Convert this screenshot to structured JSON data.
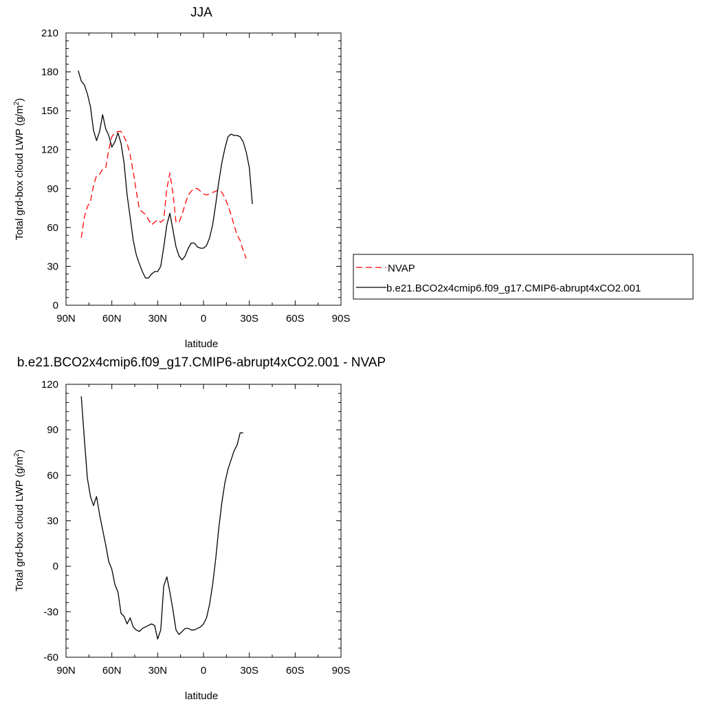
{
  "chart_data": [
    {
      "type": "line",
      "title": "JJA",
      "xlabel": "latitude",
      "ylabel": "Total grd-box cloud LWP (g/m",
      "ylabel_sup": "2",
      "ylabel_tail": ")",
      "xlim": [
        90,
        -90
      ],
      "ylim": [
        0,
        210
      ],
      "x_ticks": [
        {
          "value": 90,
          "label": "90N"
        },
        {
          "value": 60,
          "label": "60N"
        },
        {
          "value": 30,
          "label": "30N"
        },
        {
          "value": 0,
          "label": "0"
        },
        {
          "value": -30,
          "label": "30S"
        },
        {
          "value": -60,
          "label": "60S"
        },
        {
          "value": -90,
          "label": "90S"
        }
      ],
      "y_ticks": [
        0,
        30,
        60,
        90,
        120,
        150,
        180,
        210
      ],
      "legend_position": "outside-right",
      "series": [
        {
          "name": "NVAP",
          "color": "#ff0000",
          "dash": "dashed",
          "points": [
            [
              80,
              52
            ],
            [
              78,
              68
            ],
            [
              76,
              76
            ],
            [
              74,
              80
            ],
            [
              72,
              92
            ],
            [
              70,
              100
            ],
            [
              68,
              101
            ],
            [
              66,
              105
            ],
            [
              64,
              106
            ],
            [
              62,
              120
            ],
            [
              60,
              130
            ],
            [
              58,
              133
            ],
            [
              56,
              134
            ],
            [
              54,
              134
            ],
            [
              52,
              130
            ],
            [
              50,
              125
            ],
            [
              48,
              116
            ],
            [
              46,
              103
            ],
            [
              44,
              88
            ],
            [
              42,
              74
            ],
            [
              40,
              72
            ],
            [
              38,
              70
            ],
            [
              36,
              66
            ],
            [
              34,
              62
            ],
            [
              32,
              64
            ],
            [
              30,
              66
            ],
            [
              28,
              64
            ],
            [
              26,
              66
            ],
            [
              24,
              90
            ],
            [
              22,
              102
            ],
            [
              20,
              86
            ],
            [
              18,
              64
            ],
            [
              16,
              64
            ],
            [
              14,
              70
            ],
            [
              12,
              78
            ],
            [
              10,
              85
            ],
            [
              8,
              88
            ],
            [
              6,
              90
            ],
            [
              4,
              90
            ],
            [
              2,
              88
            ],
            [
              0,
              86
            ],
            [
              -2,
              85
            ],
            [
              -4,
              86
            ],
            [
              -6,
              87
            ],
            [
              -8,
              88
            ],
            [
              -10,
              89
            ],
            [
              -12,
              87
            ],
            [
              -14,
              83
            ],
            [
              -16,
              77
            ],
            [
              -18,
              70
            ],
            [
              -20,
              62
            ],
            [
              -22,
              54
            ],
            [
              -24,
              50
            ],
            [
              -26,
              42
            ],
            [
              -28,
              36
            ]
          ]
        },
        {
          "name": "b.e21.BCO2x4cmip6.f09_g17.CMIP6-abrupt4xCO2.001",
          "color": "#000000",
          "dash": "solid",
          "points": [
            [
              82,
              181
            ],
            [
              80,
              173
            ],
            [
              78,
              170
            ],
            [
              76,
              163
            ],
            [
              74,
              153
            ],
            [
              72,
              135
            ],
            [
              70,
              127
            ],
            [
              68,
              134
            ],
            [
              66,
              147
            ],
            [
              64,
              136
            ],
            [
              62,
              131
            ],
            [
              60,
              122
            ],
            [
              58,
              126
            ],
            [
              56,
              133
            ],
            [
              54,
              125
            ],
            [
              52,
              110
            ],
            [
              50,
              85
            ],
            [
              48,
              68
            ],
            [
              46,
              50
            ],
            [
              44,
              39
            ],
            [
              42,
              32
            ],
            [
              40,
              26
            ],
            [
              38,
              21
            ],
            [
              36,
              21
            ],
            [
              34,
              24
            ],
            [
              32,
              26
            ],
            [
              30,
              26
            ],
            [
              28,
              30
            ],
            [
              26,
              45
            ],
            [
              24,
              62
            ],
            [
              22,
              71
            ],
            [
              20,
              58
            ],
            [
              18,
              45
            ],
            [
              16,
              38
            ],
            [
              14,
              35
            ],
            [
              12,
              38
            ],
            [
              10,
              44
            ],
            [
              8,
              48
            ],
            [
              6,
              48
            ],
            [
              4,
              45
            ],
            [
              2,
              44
            ],
            [
              0,
              44
            ],
            [
              -2,
              46
            ],
            [
              -4,
              52
            ],
            [
              -6,
              62
            ],
            [
              -8,
              78
            ],
            [
              -10,
              95
            ],
            [
              -12,
              110
            ],
            [
              -14,
              121
            ],
            [
              -16,
              130
            ],
            [
              -18,
              132
            ],
            [
              -20,
              131
            ],
            [
              -22,
              131
            ],
            [
              -24,
              130
            ],
            [
              -26,
              126
            ],
            [
              -28,
              118
            ],
            [
              -30,
              106
            ],
            [
              -32,
              78
            ]
          ]
        }
      ]
    },
    {
      "type": "line",
      "title": "b.e21.BCO2x4cmip6.f09_g17.CMIP6-abrupt4xCO2.001 - NVAP",
      "xlabel": "latitude",
      "ylabel": "Total grd-box cloud LWP (g/m",
      "ylabel_sup": "2",
      "ylabel_tail": ")",
      "xlim": [
        90,
        -90
      ],
      "ylim": [
        -60,
        120
      ],
      "x_ticks": [
        {
          "value": 90,
          "label": "90N"
        },
        {
          "value": 60,
          "label": "60N"
        },
        {
          "value": 30,
          "label": "30N"
        },
        {
          "value": 0,
          "label": "0"
        },
        {
          "value": -30,
          "label": "30S"
        },
        {
          "value": -60,
          "label": "60S"
        },
        {
          "value": -90,
          "label": "90S"
        }
      ],
      "y_ticks": [
        -60,
        -30,
        0,
        30,
        60,
        90,
        120
      ],
      "series": [
        {
          "color": "#000000",
          "dash": "solid",
          "points": [
            [
              80,
              112
            ],
            [
              78,
              84
            ],
            [
              76,
              58
            ],
            [
              74,
              46
            ],
            [
              72,
              40
            ],
            [
              70,
              46
            ],
            [
              68,
              34
            ],
            [
              66,
              24
            ],
            [
              64,
              14
            ],
            [
              62,
              3
            ],
            [
              60,
              -2
            ],
            [
              58,
              -12
            ],
            [
              56,
              -17
            ],
            [
              54,
              -31
            ],
            [
              52,
              -33
            ],
            [
              50,
              -38
            ],
            [
              48,
              -34
            ],
            [
              46,
              -40
            ],
            [
              44,
              -42
            ],
            [
              42,
              -43
            ],
            [
              40,
              -41
            ],
            [
              38,
              -40
            ],
            [
              36,
              -39
            ],
            [
              34,
              -38
            ],
            [
              32,
              -39
            ],
            [
              30,
              -48
            ],
            [
              28,
              -42
            ],
            [
              26,
              -13
            ],
            [
              24,
              -7
            ],
            [
              22,
              -17
            ],
            [
              20,
              -29
            ],
            [
              18,
              -42
            ],
            [
              16,
              -45
            ],
            [
              14,
              -43
            ],
            [
              12,
              -41
            ],
            [
              10,
              -41
            ],
            [
              8,
              -42
            ],
            [
              6,
              -42
            ],
            [
              4,
              -41
            ],
            [
              2,
              -40
            ],
            [
              0,
              -38
            ],
            [
              -2,
              -34
            ],
            [
              -4,
              -25
            ],
            [
              -6,
              -12
            ],
            [
              -8,
              5
            ],
            [
              -10,
              25
            ],
            [
              -12,
              42
            ],
            [
              -14,
              55
            ],
            [
              -16,
              64
            ],
            [
              -18,
              70
            ],
            [
              -20,
              76
            ],
            [
              -22,
              80
            ],
            [
              -24,
              88
            ],
            [
              -26,
              88
            ]
          ]
        }
      ]
    }
  ]
}
